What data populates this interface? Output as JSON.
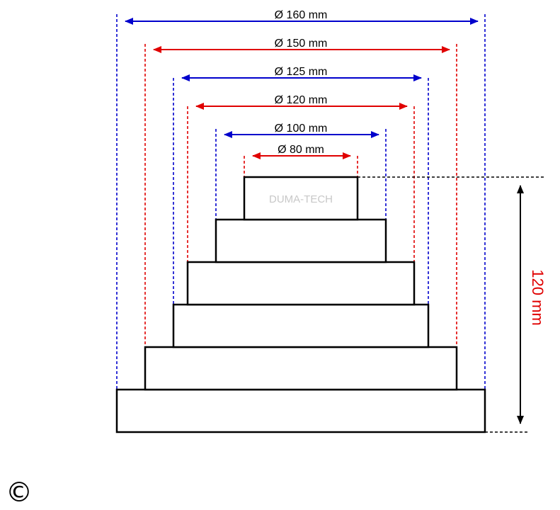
{
  "colors": {
    "blue": "#0000cc",
    "red": "#e00000",
    "black": "#000000",
    "watermark": "#c8c8c8"
  },
  "diameters": [
    {
      "label": "Ø 160 mm",
      "value_mm": 160,
      "color": "blue"
    },
    {
      "label": "Ø 150 mm",
      "value_mm": 150,
      "color": "red"
    },
    {
      "label": "Ø 125 mm",
      "value_mm": 125,
      "color": "blue"
    },
    {
      "label": "Ø 120 mm",
      "value_mm": 120,
      "color": "red"
    },
    {
      "label": "Ø 100 mm",
      "value_mm": 100,
      "color": "blue"
    },
    {
      "label": "Ø 80 mm",
      "value_mm": 80,
      "color": "red"
    }
  ],
  "height": {
    "label": "120 mm",
    "value_mm": 120,
    "color": "red"
  },
  "watermark": "DUMA-TECH",
  "copyright_symbol": "©"
}
